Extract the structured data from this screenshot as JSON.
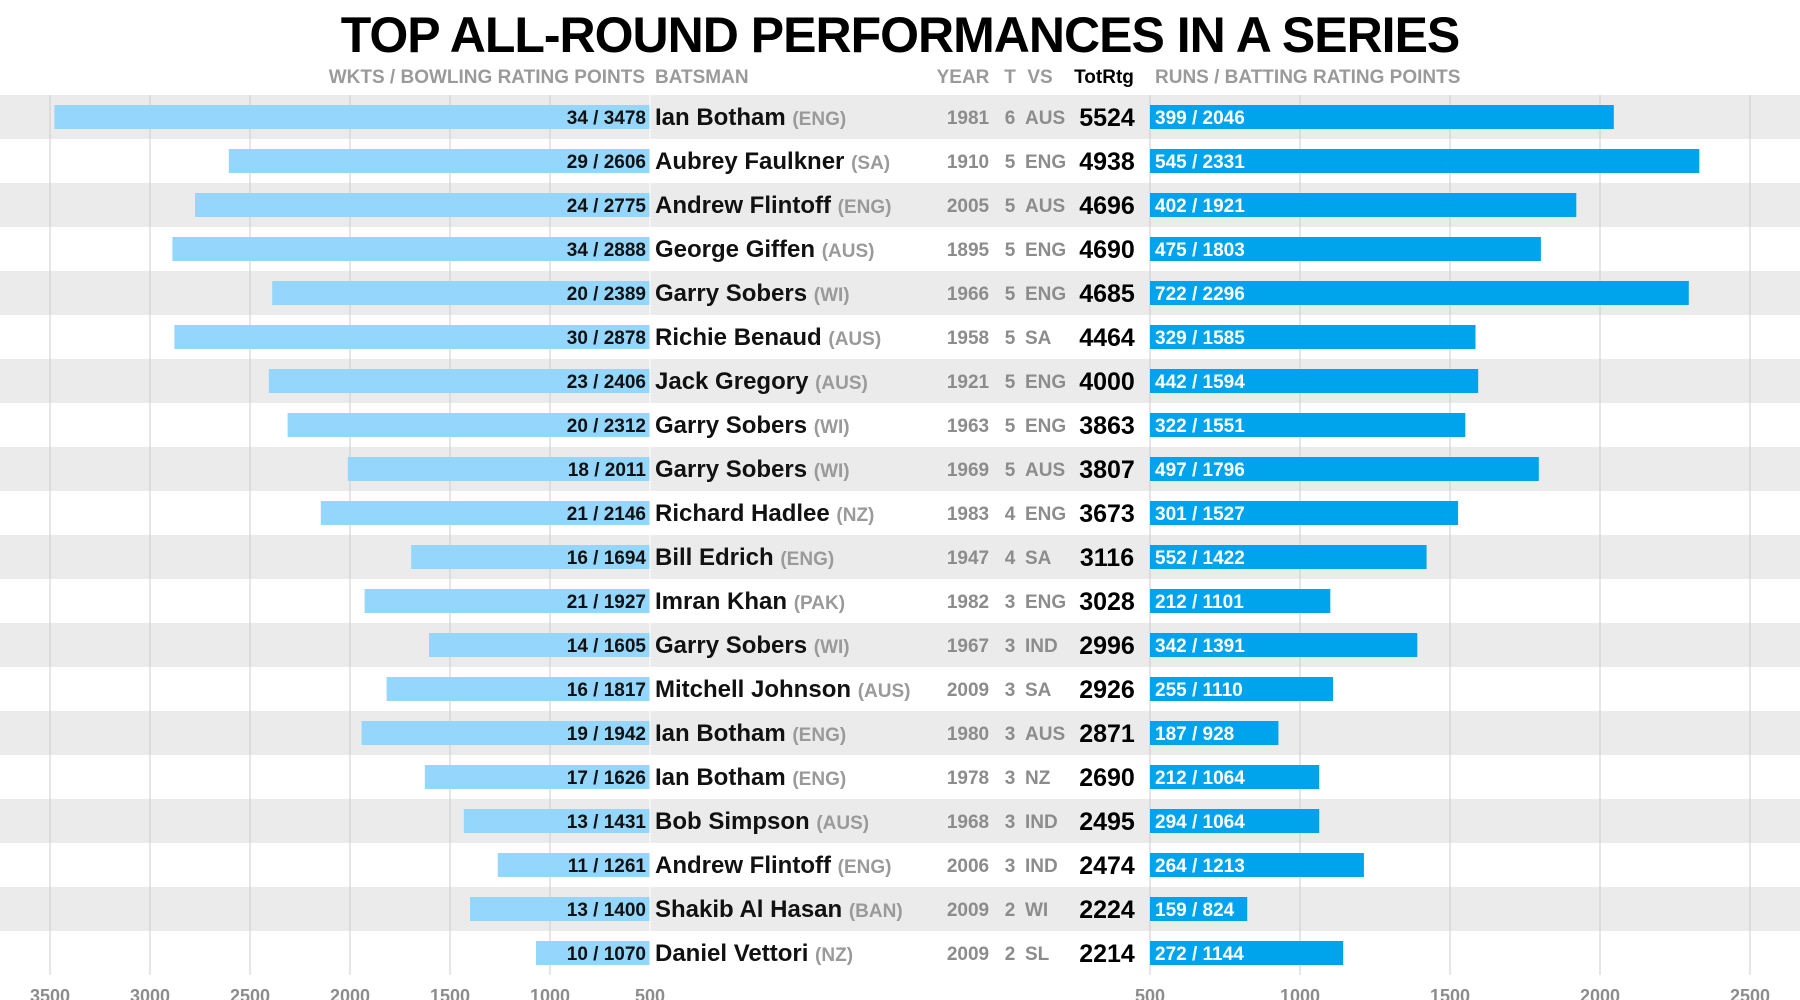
{
  "title": "TOP ALL-ROUND PERFORMANCES IN A SERIES",
  "headers": {
    "bowling": "WKTS / BOWLING RATING POINTS",
    "batsman": "BATSMAN",
    "year": "YEAR",
    "tests": "T",
    "vs": "VS",
    "total": "TotRtg",
    "batting": "RUNS / BATTING RATING POINTS"
  },
  "colors": {
    "bowling_bar": "#94d6fc",
    "batting_bar": "#00a4ec",
    "row_stripe": "#ebebeb",
    "grid": "#cccccc"
  },
  "chart_data": {
    "type": "bar",
    "layout": "diverging horizontal bars",
    "bowling_axis": {
      "direction": "leftward",
      "ticks": [
        "3500",
        "3000",
        "2500",
        "2000",
        "1500",
        "1000",
        "500"
      ],
      "range": [
        500,
        3600
      ]
    },
    "batting_axis": {
      "direction": "rightward",
      "ticks": [
        "500",
        "1000",
        "1500",
        "2000",
        "2500"
      ],
      "range": [
        500,
        2500
      ]
    },
    "rows": [
      {
        "name": "Ian Botham",
        "country": "(ENG)",
        "year": "1981",
        "tests": "6",
        "vs": "AUS",
        "total": "5524",
        "wkts": "34",
        "bowl_pts": 3478,
        "runs": "399",
        "bat_pts": 2046
      },
      {
        "name": "Aubrey Faulkner",
        "country": "(SA)",
        "year": "1910",
        "tests": "5",
        "vs": "ENG",
        "total": "4938",
        "wkts": "29",
        "bowl_pts": 2606,
        "runs": "545",
        "bat_pts": 2331
      },
      {
        "name": "Andrew Flintoff",
        "country": "(ENG)",
        "year": "2005",
        "tests": "5",
        "vs": "AUS",
        "total": "4696",
        "wkts": "24",
        "bowl_pts": 2775,
        "runs": "402",
        "bat_pts": 1921
      },
      {
        "name": "George Giffen",
        "country": "(AUS)",
        "year": "1895",
        "tests": "5",
        "vs": "ENG",
        "total": "4690",
        "wkts": "34",
        "bowl_pts": 2888,
        "runs": "475",
        "bat_pts": 1803
      },
      {
        "name": "Garry Sobers",
        "country": "(WI)",
        "year": "1966",
        "tests": "5",
        "vs": "ENG",
        "total": "4685",
        "wkts": "20",
        "bowl_pts": 2389,
        "runs": "722",
        "bat_pts": 2296
      },
      {
        "name": "Richie Benaud",
        "country": "(AUS)",
        "year": "1958",
        "tests": "5",
        "vs": "SA",
        "total": "4464",
        "wkts": "30",
        "bowl_pts": 2878,
        "runs": "329",
        "bat_pts": 1585
      },
      {
        "name": "Jack Gregory",
        "country": "(AUS)",
        "year": "1921",
        "tests": "5",
        "vs": "ENG",
        "total": "4000",
        "wkts": "23",
        "bowl_pts": 2406,
        "runs": "442",
        "bat_pts": 1594
      },
      {
        "name": "Garry Sobers",
        "country": "(WI)",
        "year": "1963",
        "tests": "5",
        "vs": "ENG",
        "total": "3863",
        "wkts": "20",
        "bowl_pts": 2312,
        "runs": "322",
        "bat_pts": 1551
      },
      {
        "name": "Garry Sobers",
        "country": "(WI)",
        "year": "1969",
        "tests": "5",
        "vs": "AUS",
        "total": "3807",
        "wkts": "18",
        "bowl_pts": 2011,
        "runs": "497",
        "bat_pts": 1796
      },
      {
        "name": "Richard Hadlee",
        "country": "(NZ)",
        "year": "1983",
        "tests": "4",
        "vs": "ENG",
        "total": "3673",
        "wkts": "21",
        "bowl_pts": 2146,
        "runs": "301",
        "bat_pts": 1527
      },
      {
        "name": "Bill Edrich",
        "country": "(ENG)",
        "year": "1947",
        "tests": "4",
        "vs": "SA",
        "total": "3116",
        "wkts": "16",
        "bowl_pts": 1694,
        "runs": "552",
        "bat_pts": 1422
      },
      {
        "name": "Imran Khan",
        "country": "(PAK)",
        "year": "1982",
        "tests": "3",
        "vs": "ENG",
        "total": "3028",
        "wkts": "21",
        "bowl_pts": 1927,
        "runs": "212",
        "bat_pts": 1101
      },
      {
        "name": "Garry Sobers",
        "country": "(WI)",
        "year": "1967",
        "tests": "3",
        "vs": "IND",
        "total": "2996",
        "wkts": "14",
        "bowl_pts": 1605,
        "runs": "342",
        "bat_pts": 1391
      },
      {
        "name": "Mitchell Johnson",
        "country": "(AUS)",
        "year": "2009",
        "tests": "3",
        "vs": "SA",
        "total": "2926",
        "wkts": "16",
        "bowl_pts": 1817,
        "runs": "255",
        "bat_pts": 1110
      },
      {
        "name": "Ian Botham",
        "country": "(ENG)",
        "year": "1980",
        "tests": "3",
        "vs": "AUS",
        "total": "2871",
        "wkts": "19",
        "bowl_pts": 1942,
        "runs": "187",
        "bat_pts": 928
      },
      {
        "name": "Ian Botham",
        "country": "(ENG)",
        "year": "1978",
        "tests": "3",
        "vs": "NZ",
        "total": "2690",
        "wkts": "17",
        "bowl_pts": 1626,
        "runs": "212",
        "bat_pts": 1064
      },
      {
        "name": "Bob Simpson",
        "country": "(AUS)",
        "year": "1968",
        "tests": "3",
        "vs": "IND",
        "total": "2495",
        "wkts": "13",
        "bowl_pts": 1431,
        "runs": "294",
        "bat_pts": 1064
      },
      {
        "name": "Andrew Flintoff",
        "country": "(ENG)",
        "year": "2006",
        "tests": "3",
        "vs": "IND",
        "total": "2474",
        "wkts": "11",
        "bowl_pts": 1261,
        "runs": "264",
        "bat_pts": 1213
      },
      {
        "name": "Shakib Al Hasan",
        "country": "(BAN)",
        "year": "2009",
        "tests": "2",
        "vs": "WI",
        "total": "2224",
        "wkts": "13",
        "bowl_pts": 1400,
        "runs": "159",
        "bat_pts": 824
      },
      {
        "name": "Daniel Vettori",
        "country": "(NZ)",
        "year": "2009",
        "tests": "2",
        "vs": "SL",
        "total": "2214",
        "wkts": "10",
        "bowl_pts": 1070,
        "runs": "272",
        "bat_pts": 1144
      }
    ]
  }
}
